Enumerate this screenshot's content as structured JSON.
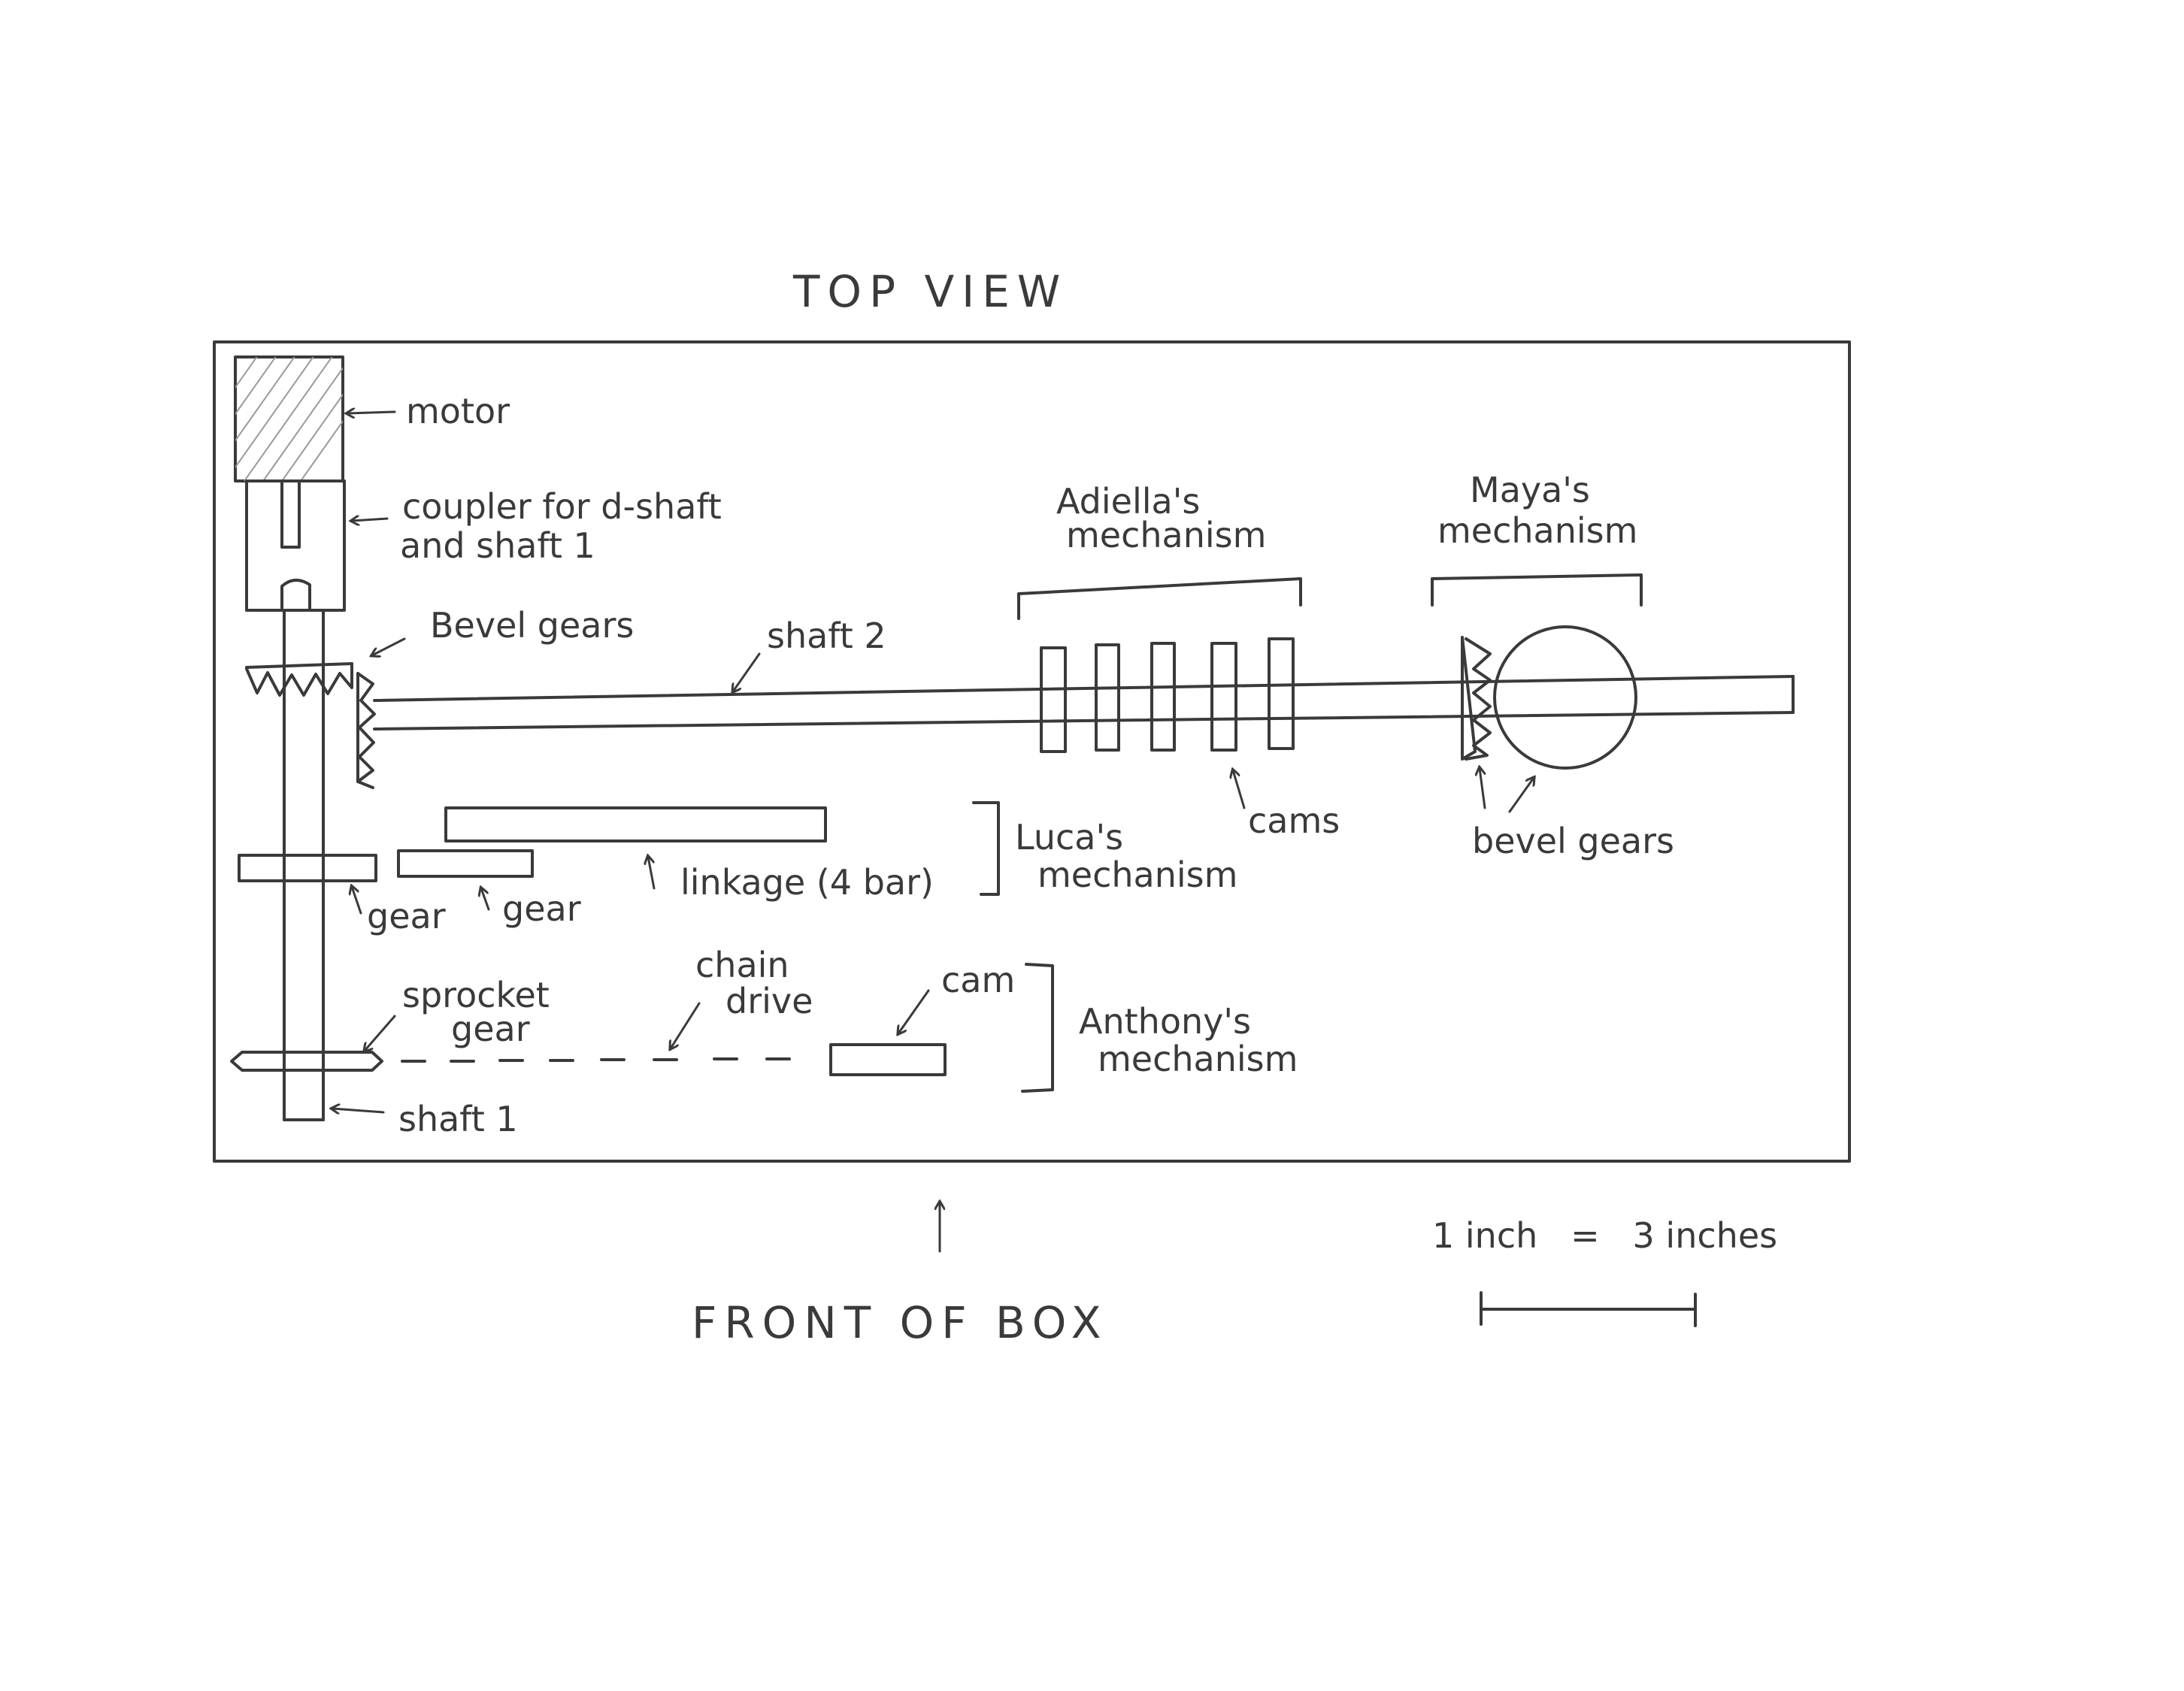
{
  "title": "TOP VIEW",
  "footer": {
    "front_label": "FRONT OF BOX",
    "scale_label": "1 inch   =   3 inches"
  },
  "labels": {
    "motor": "motor",
    "coupler_line1": "coupler for d-shaft",
    "coupler_line2": "and shaft 1",
    "bevel_gears_top": "Bevel gears",
    "shaft2": "shaft 2",
    "adiella_line1": "Adiella's",
    "adiella_line2": "mechanism",
    "maya_line1": "Maya's",
    "maya_line2": "mechanism",
    "cams": "cams",
    "bevel_gears_right": "bevel gears",
    "luca_line1": "Luca's",
    "luca_line2": "mechanism",
    "linkage": "linkage (4 bar)",
    "gear_left": "gear",
    "gear_right": "gear",
    "chain_line1": "chain",
    "chain_line2": "drive",
    "cam": "cam",
    "sprocket_line1": "sprocket",
    "sprocket_line2": "gear",
    "anthony_line1": "Anthony's",
    "anthony_line2": "mechanism",
    "shaft1": "shaft 1"
  }
}
